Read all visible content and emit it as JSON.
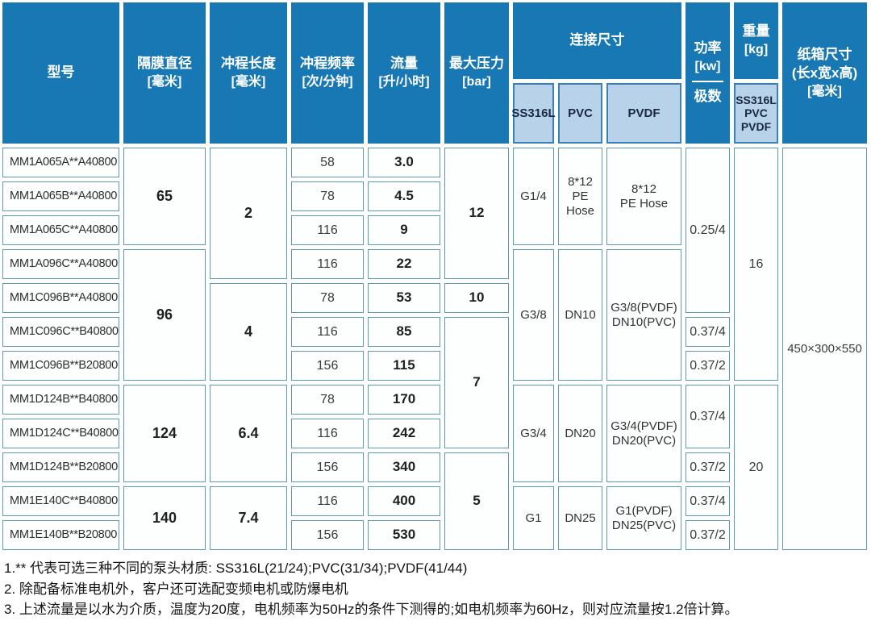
{
  "colors": {
    "header_blue": "#1878b4",
    "subheader_light_blue": "#b8d3e9",
    "cell_border_teal": "#5f9aab",
    "header_text": "#ffffff",
    "body_text": "#2e2e2e"
  },
  "header": {
    "model": "型号",
    "diaphragm_l1": "隔膜直径",
    "diaphragm_l2": "[毫米]",
    "stroke_l1": "冲程长度",
    "stroke_l2": "[毫米]",
    "frequency_l1": "冲程频率",
    "frequency_l2": "[次/分钟]",
    "flow_l1": "流量",
    "flow_l2": "[升/小时]",
    "pressure_l1": "最大压力",
    "pressure_l2": "[bar]",
    "connection": "连接尺寸",
    "connection_sub": [
      "SS316L",
      "PVC",
      "PVDF"
    ],
    "power_l1": "功率",
    "power_l2": "[kw]",
    "power_l3": "极数",
    "weight_l1": "重量",
    "weight_l2": "[kg]",
    "weight_sub": [
      "SS316L",
      "PVC",
      "PVDF"
    ],
    "carton_l1": "纸箱尺寸",
    "carton_l2": "(长x宽x高)",
    "carton_l3": "[毫米]"
  },
  "rows": {
    "models": [
      "MM1A065A**A40800",
      "MM1A065B**A40800",
      "MM1A065C**A40800",
      "MM1A096C**A40800",
      "MM1C096B**A40800",
      "MM1C096C**B40800",
      "MM1C096B**B20800",
      "MM1D124B**B40800",
      "MM1D124C**B40800",
      "MM1D124B**B20800",
      "MM1E140C**B40800",
      "MM1E140B**B20800"
    ],
    "frequency": [
      "58",
      "78",
      "116",
      "116",
      "78",
      "116",
      "156",
      "78",
      "116",
      "156",
      "116",
      "156"
    ],
    "flow": [
      "3.0",
      "4.5",
      "9",
      "22",
      "53",
      "85",
      "115",
      "170",
      "242",
      "340",
      "400",
      "530"
    ]
  },
  "spans": {
    "diaphragm": [
      "65",
      "96",
      "124",
      "140"
    ],
    "stroke": [
      "2",
      "4",
      "6.4",
      "7.4"
    ],
    "pressure": [
      "12",
      "10",
      "7",
      "5"
    ],
    "connection": [
      {
        "ss316l": "G1/4",
        "pvc": "8*12\nPE\nHose",
        "pvdf": "8*12\nPE Hose"
      },
      {
        "ss316l": "G3/8",
        "pvc": "DN10",
        "pvdf": "G3/8(PVDF)\nDN10(PVC)"
      },
      {
        "ss316l": "G3/4",
        "pvc": "DN20",
        "pvdf": "G3/4(PVDF)\nDN20(PVC)"
      },
      {
        "ss316l": "G1",
        "pvc": "DN25",
        "pvdf": "G1(PVDF)\nDN25(PVC)"
      }
    ],
    "power": [
      "0.25/4",
      "0.37/4",
      "0.37/2",
      "0.37/4",
      "0.37/2",
      "0.37/4",
      "0.37/2"
    ],
    "weight": [
      "16",
      "20"
    ],
    "carton": "450×300×550"
  },
  "notes": [
    "1.** 代表可选三种不同的泵头材质: SS316L(21/24);PVC(31/34);PVDF(41/44)",
    "2. 除配备标准电机外，客户还可选配变频电机或防爆电机",
    "3. 上述流量是以水为介质，温度为20度，电机频率为50Hz的条件下测得的;如电机频率为60Hz，则对应流量按1.2倍计算。"
  ]
}
